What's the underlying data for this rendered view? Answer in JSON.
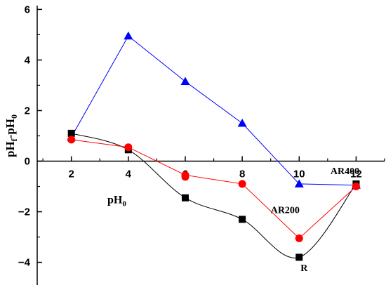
{
  "chart_data": {
    "type": "line",
    "x_ticks": [
      2,
      4,
      6,
      8,
      10,
      12
    ],
    "y_ticks": [
      -4,
      -2,
      0,
      2,
      4,
      6
    ],
    "xlim": [
      0.8,
      13
    ],
    "ylim": [
      -4.9,
      6.15
    ],
    "xlabel": {
      "main": "pH",
      "sub": "0"
    },
    "ylabel": {
      "p1": "pH",
      "s1": "f",
      "p2": "-pH",
      "s2": "0"
    },
    "series": [
      {
        "name": "R",
        "color": "#000000",
        "marker": "square",
        "curve": "smooth",
        "x": [
          2,
          4,
          6,
          8,
          10,
          12
        ],
        "y": [
          1.1,
          0.45,
          -1.45,
          -2.3,
          -3.8,
          -0.9
        ]
      },
      {
        "name": "AR200",
        "color": "#ff0000",
        "marker": "circle",
        "curve": "straight",
        "x": [
          2,
          4,
          6,
          8,
          10,
          12
        ],
        "y": [
          0.85,
          0.55,
          -0.55,
          -0.9,
          -3.05,
          -1.0
        ]
      },
      {
        "name": "AR400",
        "color": "#0000ff",
        "marker": "triangle",
        "curve": "straight",
        "x": [
          2,
          4,
          6,
          8,
          10,
          12
        ],
        "y": [
          0.95,
          4.95,
          3.15,
          1.5,
          -0.9,
          -0.95
        ]
      }
    ],
    "extra_points": [
      {
        "x": 6,
        "y": -0.62,
        "color": "#ff0000",
        "marker": "circle"
      }
    ],
    "series_labels": [
      {
        "text": "R",
        "x": 10.05,
        "y": -4.35
      },
      {
        "text": "AR200",
        "x": 9.0,
        "y": -2.05
      },
      {
        "text": "AR400",
        "x": 11.1,
        "y": -0.52
      }
    ],
    "grid": false,
    "legend": "none"
  }
}
